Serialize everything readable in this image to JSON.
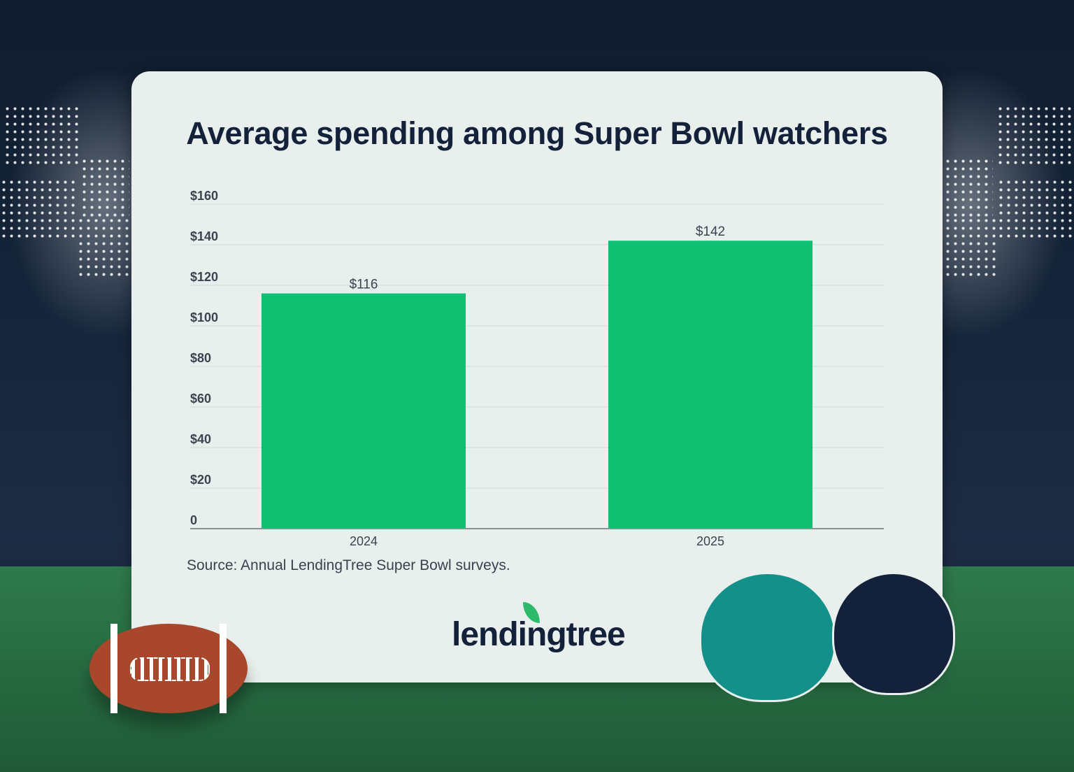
{
  "title": "Average spending among Super Bowl watchers",
  "source": "Source: Annual LendingTree Super Bowl surveys.",
  "logo": "lendingtree",
  "colors": {
    "bar": "#0fc073",
    "title": "#14213a",
    "background_card": "#e8efed"
  },
  "chart_data": {
    "type": "bar",
    "title": "Average spending among Super Bowl watchers",
    "categories": [
      "2024",
      "2025"
    ],
    "values": [
      116,
      142
    ],
    "data_labels": [
      "$116",
      "$142"
    ],
    "ylim": [
      0,
      160
    ],
    "yticks": [
      0,
      20,
      40,
      60,
      80,
      100,
      120,
      140,
      160
    ],
    "ytick_labels": [
      "0",
      "$20",
      "$40",
      "$60",
      "$80",
      "$100",
      "$120",
      "$140",
      "$160"
    ],
    "xlabel": "",
    "ylabel": "",
    "grid": true,
    "legend": "none"
  }
}
